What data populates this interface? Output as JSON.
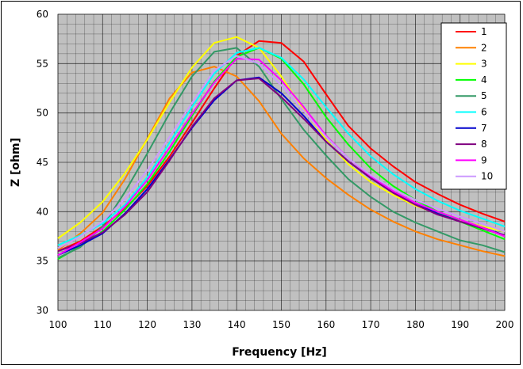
{
  "chart_data": {
    "type": "line",
    "title": "",
    "xlabel": "Frequency [Hz]",
    "ylabel": "Z [ohm]",
    "xlim": [
      100,
      200
    ],
    "ylim": [
      30,
      60
    ],
    "x_ticks": [
      100,
      110,
      120,
      130,
      140,
      150,
      160,
      170,
      180,
      190,
      200
    ],
    "y_ticks": [
      30,
      35,
      40,
      45,
      50,
      55,
      60
    ],
    "grid": true,
    "plot_background": "#c0c0c0",
    "legend_position": "top-right",
    "x": [
      100,
      105,
      110,
      115,
      120,
      125,
      130,
      135,
      140,
      145,
      150,
      155,
      160,
      165,
      170,
      175,
      180,
      185,
      190,
      195,
      200
    ],
    "series": [
      {
        "name": "1",
        "color": "#ff0000",
        "values": [
          36.0,
          37.0,
          38.5,
          40.3,
          42.6,
          45.6,
          49.0,
          52.5,
          55.8,
          57.3,
          57.1,
          55.2,
          51.9,
          48.7,
          46.4,
          44.6,
          43.0,
          41.8,
          40.7,
          39.8,
          39.0
        ]
      },
      {
        "name": "2",
        "color": "#ff8000",
        "values": [
          36.1,
          37.8,
          39.9,
          43.3,
          47.4,
          51.5,
          54.1,
          54.7,
          53.7,
          51.2,
          47.9,
          45.4,
          43.4,
          41.7,
          40.2,
          39.0,
          38.0,
          37.2,
          36.6,
          36.0,
          35.5
        ]
      },
      {
        "name": "3",
        "color": "#ffff00",
        "values": [
          37.3,
          38.9,
          41.0,
          43.9,
          47.3,
          51.1,
          54.6,
          57.1,
          57.7,
          56.6,
          53.7,
          50.3,
          47.3,
          44.8,
          43.0,
          41.7,
          40.6,
          39.8,
          39.1,
          38.5,
          38.0
        ]
      },
      {
        "name": "4",
        "color": "#00ff00",
        "values": [
          35.2,
          36.5,
          38.0,
          40.2,
          42.8,
          46.1,
          49.7,
          53.2,
          55.7,
          56.6,
          55.5,
          52.9,
          49.6,
          46.8,
          44.4,
          42.6,
          41.2,
          40.0,
          39.0,
          38.1,
          37.2
        ]
      },
      {
        "name": "5",
        "color": "#339966",
        "values": [
          35.3,
          36.4,
          38.5,
          42.0,
          45.9,
          50.0,
          53.7,
          56.2,
          56.6,
          54.7,
          51.4,
          48.3,
          45.7,
          43.3,
          41.5,
          40.0,
          38.9,
          38.0,
          37.1,
          36.6,
          35.9
        ]
      },
      {
        "name": "6",
        "color": "#00ffff",
        "values": [
          36.6,
          37.6,
          38.8,
          40.7,
          43.5,
          47.0,
          50.6,
          54.0,
          56.1,
          56.6,
          55.6,
          53.4,
          50.6,
          47.9,
          45.6,
          43.8,
          42.3,
          41.1,
          40.1,
          39.3,
          38.5
        ]
      },
      {
        "name": "7",
        "color": "#0000cc",
        "values": [
          35.6,
          36.6,
          37.8,
          39.8,
          42.3,
          45.3,
          48.5,
          51.3,
          53.3,
          53.6,
          52.0,
          49.7,
          47.1,
          45.1,
          43.4,
          42.0,
          40.9,
          39.8,
          39.0,
          38.4,
          37.6
        ]
      },
      {
        "name": "8",
        "color": "#800080",
        "values": [
          36.0,
          36.8,
          37.9,
          39.7,
          42.0,
          45.2,
          48.6,
          51.5,
          53.3,
          53.5,
          51.6,
          49.4,
          47.1,
          45.1,
          43.4,
          41.9,
          40.7,
          39.7,
          39.0,
          38.3,
          37.6
        ]
      },
      {
        "name": "9",
        "color": "#ff00ff",
        "values": [
          35.6,
          36.9,
          38.3,
          40.5,
          43.2,
          46.5,
          49.9,
          53.1,
          55.5,
          55.4,
          53.3,
          50.6,
          47.7,
          45.4,
          43.6,
          42.1,
          40.9,
          40.0,
          39.2,
          38.4,
          37.5
        ]
      },
      {
        "name": "10",
        "color": "#cc99ff",
        "values": [
          36.3,
          37.5,
          39.0,
          41.3,
          44.2,
          47.6,
          51.0,
          54.3,
          55.8,
          55.0,
          52.8,
          50.2,
          47.6,
          45.4,
          43.7,
          42.3,
          41.2,
          40.3,
          39.5,
          38.8,
          38.0
        ]
      }
    ]
  }
}
